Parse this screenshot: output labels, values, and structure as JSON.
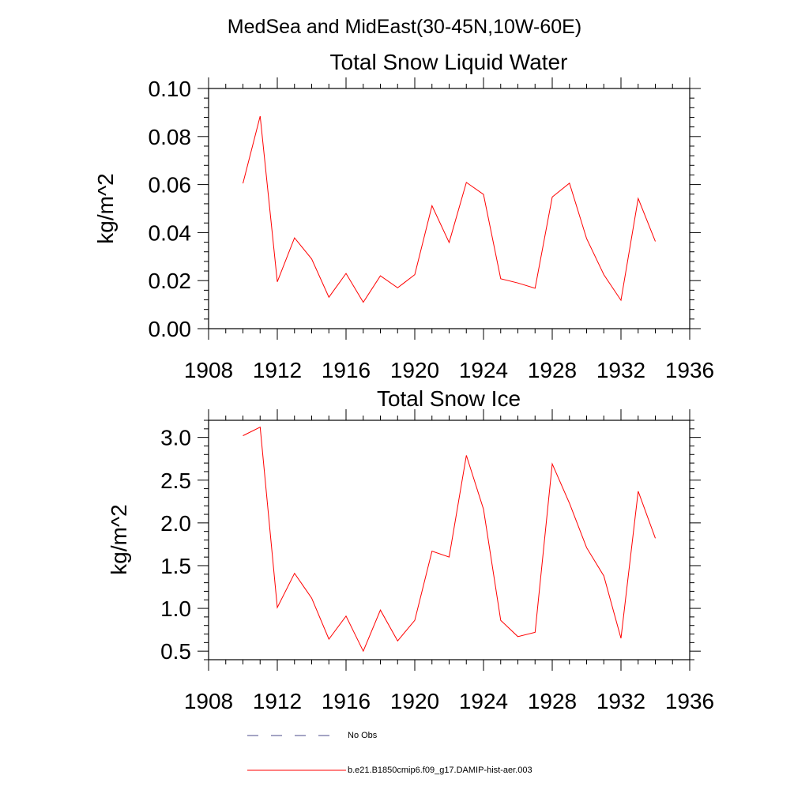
{
  "page_title": "MedSea and MidEast(30-45N,10W-60E)",
  "colors": {
    "series": "#ff0000",
    "no_obs": "#4a4a8a",
    "axis": "#000000"
  },
  "legend": {
    "items": [
      {
        "label": "No Obs",
        "style": "dashed",
        "color": "#4a4a8a"
      },
      {
        "label": "b.e21.B1850cmip6.f09_g17.DAMIP-hist-aer.003",
        "style": "solid",
        "color": "#ff0000"
      }
    ]
  },
  "chart_data": [
    {
      "type": "line",
      "title": "Total Snow Liquid Water",
      "ylabel": "kg/m^2",
      "xlabel": "",
      "xlim": [
        1908,
        1936
      ],
      "ylim": [
        0.0,
        0.1
      ],
      "x_ticks": [
        1908,
        1912,
        1916,
        1920,
        1924,
        1928,
        1932,
        1936
      ],
      "y_ticks": [
        "0.00",
        "0.02",
        "0.04",
        "0.06",
        "0.08",
        "0.10"
      ],
      "y_tick_values": [
        0.0,
        0.02,
        0.04,
        0.06,
        0.08,
        0.1
      ],
      "grid": false,
      "series": [
        {
          "name": "b.e21.B1850cmip6.f09_g17.DAMIP-hist-aer.003",
          "x": [
            1910,
            1911,
            1912,
            1913,
            1914,
            1915,
            1916,
            1917,
            1918,
            1919,
            1920,
            1921,
            1922,
            1923,
            1924,
            1925,
            1926,
            1927,
            1928,
            1929,
            1930,
            1931,
            1932,
            1933,
            1934
          ],
          "values": [
            0.0605,
            0.0885,
            0.0195,
            0.0378,
            0.029,
            0.0131,
            0.023,
            0.011,
            0.022,
            0.017,
            0.0225,
            0.0512,
            0.0359,
            0.0609,
            0.0559,
            0.0208,
            0.019,
            0.0168,
            0.0548,
            0.0606,
            0.0375,
            0.0225,
            0.0118,
            0.0542,
            0.0363
          ]
        }
      ]
    },
    {
      "type": "line",
      "title": "Total Snow Ice",
      "ylabel": "kg/m^2",
      "xlabel": "",
      "xlim": [
        1908,
        1936
      ],
      "ylim": [
        0.4,
        3.2
      ],
      "x_ticks": [
        1908,
        1912,
        1916,
        1920,
        1924,
        1928,
        1932,
        1936
      ],
      "y_ticks": [
        "0.5",
        "1.0",
        "1.5",
        "2.0",
        "2.5",
        "3.0"
      ],
      "y_tick_values": [
        0.5,
        1.0,
        1.5,
        2.0,
        2.5,
        3.0
      ],
      "grid": false,
      "series": [
        {
          "name": "b.e21.B1850cmip6.f09_g17.DAMIP-hist-aer.003",
          "x": [
            1910,
            1911,
            1912,
            1913,
            1914,
            1915,
            1916,
            1917,
            1918,
            1919,
            1920,
            1921,
            1922,
            1923,
            1924,
            1925,
            1926,
            1927,
            1928,
            1929,
            1930,
            1931,
            1932,
            1933,
            1934
          ],
          "values": [
            3.02,
            3.12,
            1.01,
            1.41,
            1.12,
            0.64,
            0.91,
            0.5,
            0.98,
            0.62,
            0.86,
            1.67,
            1.6,
            2.79,
            2.16,
            0.86,
            0.67,
            0.72,
            2.69,
            2.23,
            1.71,
            1.38,
            0.65,
            2.37,
            1.82
          ]
        }
      ]
    }
  ]
}
